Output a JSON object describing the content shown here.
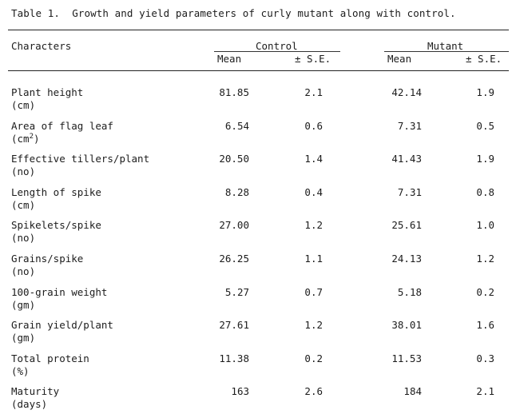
{
  "caption": "Table 1.  Growth and yield parameters of curly mutant along with control.",
  "header": {
    "characters": "Characters",
    "control": "Control",
    "mutant": "Mutant",
    "mean": "Mean",
    "se": "± S.E."
  },
  "rows": [
    {
      "name": "Plant height",
      "unit": "(cm)",
      "control_mean": "81.85",
      "control_se": "2.1",
      "mutant_mean": "42.14",
      "mutant_se": "1.9"
    },
    {
      "name": "Area of flag leaf",
      "unit": "(cm",
      "unit_sup": "2",
      "unit_end": ")",
      "control_mean": "6.54",
      "control_se": "0.6",
      "mutant_mean": "7.31",
      "mutant_se": "0.5"
    },
    {
      "name": "Effective tillers/plant",
      "unit": "(no)",
      "control_mean": "20.50",
      "control_se": "1.4",
      "mutant_mean": "41.43",
      "mutant_se": "1.9"
    },
    {
      "name": "Length of spike",
      "unit": "(cm)",
      "control_mean": "8.28",
      "control_se": "0.4",
      "mutant_mean": "7.31",
      "mutant_se": "0.8"
    },
    {
      "name": "Spikelets/spike",
      "unit": "(no)",
      "control_mean": "27.00",
      "control_se": "1.2",
      "mutant_mean": "25.61",
      "mutant_se": "1.0"
    },
    {
      "name": "Grains/spike",
      "unit": "(no)",
      "control_mean": "26.25",
      "control_se": "1.1",
      "mutant_mean": "24.13",
      "mutant_se": "1.2"
    },
    {
      "name": "100-grain weight",
      "unit": "(gm)",
      "control_mean": "5.27",
      "control_se": "0.7",
      "mutant_mean": "5.18",
      "mutant_se": "0.2"
    },
    {
      "name": "Grain yield/plant",
      "unit": "(gm)",
      "control_mean": "27.61",
      "control_se": "1.2",
      "mutant_mean": "38.01",
      "mutant_se": "1.6"
    },
    {
      "name": "Total protein",
      "unit": "(%)",
      "control_mean": "11.38",
      "control_se": "0.2",
      "mutant_mean": "11.53",
      "mutant_se": "0.3"
    },
    {
      "name": "Maturity",
      "unit": "(days)",
      "control_mean": "163",
      "control_se": "2.6",
      "mutant_mean": "184",
      "mutant_se": "2.1"
    }
  ]
}
